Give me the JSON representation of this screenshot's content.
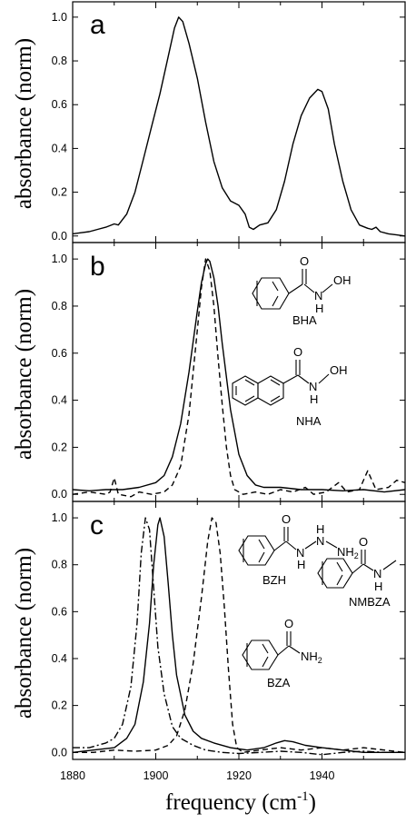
{
  "chart_data": [
    {
      "panel": "a",
      "type": "line",
      "xlim": [
        1880,
        1960
      ],
      "ylim": [
        -0.03,
        1.07
      ],
      "yticks": [
        0.0,
        0.2,
        0.4,
        0.6,
        0.8,
        1.0
      ],
      "ytick_labels": [
        "0.0",
        "0.2",
        "0.4",
        "0.6",
        "0.8",
        "1.0"
      ],
      "ylabel": "absorbance (norm)",
      "series": [
        {
          "style": "solid",
          "points": [
            [
              1880,
              0.01
            ],
            [
              1882,
              0.015
            ],
            [
              1884,
              0.02
            ],
            [
              1886,
              0.03
            ],
            [
              1888,
              0.04
            ],
            [
              1890,
              0.055
            ],
            [
              1891,
              0.05
            ],
            [
              1893,
              0.1
            ],
            [
              1895,
              0.2
            ],
            [
              1897,
              0.35
            ],
            [
              1899,
              0.5
            ],
            [
              1901,
              0.65
            ],
            [
              1903,
              0.82
            ],
            [
              1904.5,
              0.95
            ],
            [
              1905.5,
              1.0
            ],
            [
              1906.5,
              0.98
            ],
            [
              1908,
              0.88
            ],
            [
              1910,
              0.72
            ],
            [
              1912,
              0.52
            ],
            [
              1914,
              0.34
            ],
            [
              1916,
              0.22
            ],
            [
              1918,
              0.16
            ],
            [
              1920,
              0.14
            ],
            [
              1921.5,
              0.1
            ],
            [
              1922.5,
              0.04
            ],
            [
              1923.5,
              0.03
            ],
            [
              1925,
              0.05
            ],
            [
              1927,
              0.06
            ],
            [
              1929,
              0.12
            ],
            [
              1931,
              0.25
            ],
            [
              1933,
              0.42
            ],
            [
              1935,
              0.55
            ],
            [
              1937,
              0.63
            ],
            [
              1939,
              0.67
            ],
            [
              1940,
              0.66
            ],
            [
              1941.5,
              0.58
            ],
            [
              1943,
              0.42
            ],
            [
              1945,
              0.25
            ],
            [
              1947,
              0.12
            ],
            [
              1949,
              0.05
            ],
            [
              1951,
              0.035
            ],
            [
              1952,
              0.03
            ],
            [
              1953,
              0.04
            ],
            [
              1954,
              0.02
            ],
            [
              1956,
              0.01
            ],
            [
              1958,
              0.005
            ],
            [
              1960,
              0.0
            ]
          ]
        }
      ]
    },
    {
      "panel": "b",
      "type": "line",
      "xlim": [
        1880,
        1960
      ],
      "ylim": [
        -0.03,
        1.07
      ],
      "yticks": [
        0.0,
        0.2,
        0.4,
        0.6,
        0.8,
        1.0
      ],
      "ytick_labels": [
        "0.0",
        "0.2",
        "0.4",
        "0.6",
        "0.8",
        "1.0"
      ],
      "ylabel": "absorbance (norm)",
      "molecules": [
        "BHA",
        "NHA"
      ],
      "series": [
        {
          "style": "solid",
          "points": [
            [
              1880,
              0.02
            ],
            [
              1884,
              0.015
            ],
            [
              1888,
              0.02
            ],
            [
              1892,
              0.02
            ],
            [
              1896,
              0.03
            ],
            [
              1900,
              0.05
            ],
            [
              1902,
              0.08
            ],
            [
              1904,
              0.16
            ],
            [
              1906,
              0.3
            ],
            [
              1908,
              0.52
            ],
            [
              1910,
              0.78
            ],
            [
              1911,
              0.9
            ],
            [
              1912,
              0.98
            ],
            [
              1912.5,
              1.0
            ],
            [
              1913,
              0.99
            ],
            [
              1914,
              0.92
            ],
            [
              1915,
              0.8
            ],
            [
              1916,
              0.64
            ],
            [
              1918,
              0.36
            ],
            [
              1920,
              0.17
            ],
            [
              1922,
              0.08
            ],
            [
              1924,
              0.04
            ],
            [
              1926,
              0.03
            ],
            [
              1930,
              0.03
            ],
            [
              1935,
              0.02
            ],
            [
              1940,
              0.02
            ],
            [
              1945,
              0.015
            ],
            [
              1950,
              0.02
            ],
            [
              1955,
              0.01
            ],
            [
              1960,
              0.02
            ]
          ]
        },
        {
          "style": "dashed",
          "points": [
            [
              1880,
              0.0
            ],
            [
              1884,
              0.01
            ],
            [
              1888,
              0.0
            ],
            [
              1889,
              0.01
            ],
            [
              1890,
              0.07
            ],
            [
              1891,
              0.0
            ],
            [
              1894,
              -0.01
            ],
            [
              1896,
              0.01
            ],
            [
              1899,
              0.0
            ],
            [
              1902,
              0.01
            ],
            [
              1904,
              0.04
            ],
            [
              1906,
              0.12
            ],
            [
              1908,
              0.34
            ],
            [
              1910,
              0.7
            ],
            [
              1911,
              0.88
            ],
            [
              1912,
              1.0
            ],
            [
              1913,
              0.95
            ],
            [
              1914,
              0.8
            ],
            [
              1915,
              0.58
            ],
            [
              1916,
              0.38
            ],
            [
              1917,
              0.2
            ],
            [
              1918,
              0.08
            ],
            [
              1919,
              0.02
            ],
            [
              1921,
              0.0
            ],
            [
              1924,
              0.01
            ],
            [
              1927,
              0.0
            ],
            [
              1930,
              0.02
            ],
            [
              1933,
              0.01
            ],
            [
              1936,
              0.03
            ],
            [
              1938,
              0.0
            ],
            [
              1941,
              0.01
            ],
            [
              1944,
              0.05
            ],
            [
              1946,
              0.01
            ],
            [
              1949,
              0.02
            ],
            [
              1951,
              0.1
            ],
            [
              1953,
              0.02
            ],
            [
              1956,
              0.03
            ],
            [
              1958,
              0.06
            ],
            [
              1960,
              0.05
            ]
          ]
        }
      ]
    },
    {
      "panel": "c",
      "type": "line",
      "xlim": [
        1880,
        1960
      ],
      "ylim": [
        -0.03,
        1.07
      ],
      "xticks": [
        1880,
        1900,
        1920,
        1940
      ],
      "xtick_labels": [
        "1880",
        "1900",
        "1920",
        "1940"
      ],
      "yticks": [
        0.0,
        0.2,
        0.4,
        0.6,
        0.8,
        1.0
      ],
      "ytick_labels": [
        "0.0",
        "0.2",
        "0.4",
        "0.6",
        "0.8",
        "1.0"
      ],
      "ylabel": "absorbance (norm)",
      "xlabel": "frequency (cm⁻¹)",
      "molecules": [
        "BZH",
        "NMBZA",
        "BZA"
      ],
      "series": [
        {
          "style": "solid",
          "points": [
            [
              1880,
              0.0
            ],
            [
              1885,
              0.01
            ],
            [
              1890,
              0.02
            ],
            [
              1893,
              0.06
            ],
            [
              1895,
              0.12
            ],
            [
              1897,
              0.3
            ],
            [
              1898.5,
              0.55
            ],
            [
              1899.5,
              0.8
            ],
            [
              1900.5,
              0.97
            ],
            [
              1901,
              1.0
            ],
            [
              1902,
              0.92
            ],
            [
              1903,
              0.72
            ],
            [
              1904,
              0.5
            ],
            [
              1905,
              0.33
            ],
            [
              1907,
              0.16
            ],
            [
              1909,
              0.09
            ],
            [
              1911,
              0.06
            ],
            [
              1914,
              0.04
            ],
            [
              1918,
              0.02
            ],
            [
              1922,
              0.01
            ],
            [
              1926,
              0.02
            ],
            [
              1929,
              0.04
            ],
            [
              1931,
              0.05
            ],
            [
              1933,
              0.045
            ],
            [
              1936,
              0.03
            ],
            [
              1940,
              0.02
            ],
            [
              1945,
              0.01
            ],
            [
              1950,
              0.0
            ],
            [
              1955,
              0.0
            ],
            [
              1960,
              0.0
            ]
          ]
        },
        {
          "style": "dashed",
          "points": [
            [
              1880,
              0.0
            ],
            [
              1885,
              0.0
            ],
            [
              1890,
              0.01
            ],
            [
              1895,
              0.005
            ],
            [
              1900,
              0.01
            ],
            [
              1903,
              0.03
            ],
            [
              1905,
              0.07
            ],
            [
              1907,
              0.18
            ],
            [
              1909,
              0.38
            ],
            [
              1911,
              0.66
            ],
            [
              1912.5,
              0.9
            ],
            [
              1913.5,
              1.0
            ],
            [
              1914.5,
              0.98
            ],
            [
              1915.5,
              0.85
            ],
            [
              1916.5,
              0.62
            ],
            [
              1917.5,
              0.35
            ],
            [
              1918.5,
              0.12
            ],
            [
              1919.5,
              0.02
            ],
            [
              1921,
              0.0
            ],
            [
              1925,
              0.01
            ],
            [
              1930,
              0.02
            ],
            [
              1935,
              0.01
            ],
            [
              1940,
              0.02
            ],
            [
              1945,
              0.01
            ],
            [
              1950,
              0.02
            ],
            [
              1955,
              0.01
            ],
            [
              1960,
              0.0
            ]
          ]
        },
        {
          "style": "dashdot",
          "points": [
            [
              1880,
              0.02
            ],
            [
              1884,
              0.02
            ],
            [
              1888,
              0.04
            ],
            [
              1890,
              0.06
            ],
            [
              1892,
              0.12
            ],
            [
              1894,
              0.28
            ],
            [
              1895.5,
              0.55
            ],
            [
              1896.5,
              0.85
            ],
            [
              1897.5,
              1.0
            ],
            [
              1898.5,
              0.95
            ],
            [
              1899.5,
              0.7
            ],
            [
              1900.5,
              0.45
            ],
            [
              1902,
              0.25
            ],
            [
              1904,
              0.11
            ],
            [
              1906,
              0.06
            ],
            [
              1909,
              0.03
            ],
            [
              1912,
              0.01
            ],
            [
              1916,
              0.0
            ],
            [
              1920,
              -0.005
            ],
            [
              1925,
              0.0
            ],
            [
              1930,
              0.005
            ],
            [
              1935,
              0.0
            ],
            [
              1940,
              -0.01
            ],
            [
              1945,
              0.0
            ],
            [
              1950,
              0.005
            ],
            [
              1955,
              0.0
            ],
            [
              1960,
              0.0
            ]
          ]
        }
      ]
    }
  ],
  "panel_letters": [
    "a",
    "b",
    "c"
  ],
  "ylabel_text": "absorbance (norm)",
  "xlabel_main": "frequency (cm",
  "xlabel_sup": "-1",
  "xlabel_close": ")",
  "molecule_labels": {
    "bha": "BHA",
    "nha": "NHA",
    "bzh": "BZH",
    "nmbza": "NMBZA",
    "bza": "BZA"
  },
  "atom_labels": {
    "O": "O",
    "N": "N",
    "OH": "OH",
    "H": "H",
    "NH": "NH",
    "sub2": "2"
  }
}
